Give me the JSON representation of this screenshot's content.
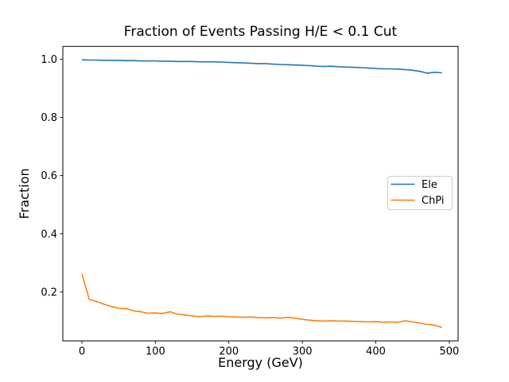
{
  "figure": {
    "background": "#ffffff",
    "spine_color": "#000000"
  },
  "chart_data": {
    "type": "line",
    "title": "Fraction of Events Passing H/E < 0.1 Cut",
    "xlabel": "Energy (GeV)",
    "ylabel": "Fraction",
    "grid": false,
    "legend": {
      "position": "center right",
      "entries": [
        "Ele",
        "ChPi"
      ]
    },
    "xlim": [
      -26,
      512
    ],
    "ylim": [
      0.032,
      1.044
    ],
    "xticks": {
      "values": [
        0,
        100,
        200,
        300,
        400,
        500
      ],
      "labels": [
        "0",
        "100",
        "200",
        "300",
        "400",
        "500"
      ]
    },
    "yticks": {
      "values": [
        0.2,
        0.4,
        0.6,
        0.8,
        1.0
      ],
      "labels": [
        "0.2",
        "0.4",
        "0.6",
        "0.8",
        "1.0"
      ]
    },
    "x": [
      0,
      10,
      20,
      30,
      40,
      50,
      60,
      70,
      80,
      90,
      100,
      110,
      120,
      130,
      140,
      150,
      160,
      170,
      180,
      190,
      200,
      210,
      220,
      230,
      240,
      250,
      260,
      270,
      280,
      290,
      300,
      310,
      320,
      330,
      340,
      350,
      360,
      370,
      380,
      390,
      400,
      410,
      420,
      430,
      440,
      450,
      460,
      470,
      480,
      490
    ],
    "series": [
      {
        "name": "Ele",
        "color": "#1f77b4",
        "values": [
          0.998,
          0.997,
          0.997,
          0.996,
          0.996,
          0.996,
          0.995,
          0.995,
          0.994,
          0.994,
          0.994,
          0.993,
          0.993,
          0.992,
          0.992,
          0.992,
          0.991,
          0.991,
          0.991,
          0.99,
          0.989,
          0.988,
          0.987,
          0.986,
          0.985,
          0.985,
          0.983,
          0.982,
          0.981,
          0.98,
          0.979,
          0.978,
          0.976,
          0.975,
          0.976,
          0.974,
          0.973,
          0.972,
          0.971,
          0.97,
          0.968,
          0.967,
          0.967,
          0.966,
          0.964,
          0.962,
          0.958,
          0.952,
          0.955,
          0.953
        ]
      },
      {
        "name": "ChPi",
        "color": "#ff7f0e",
        "values": [
          0.262,
          0.174,
          0.167,
          0.158,
          0.15,
          0.144,
          0.143,
          0.135,
          0.132,
          0.127,
          0.128,
          0.126,
          0.132,
          0.124,
          0.121,
          0.118,
          0.115,
          0.118,
          0.116,
          0.117,
          0.115,
          0.114,
          0.113,
          0.114,
          0.112,
          0.111,
          0.112,
          0.11,
          0.113,
          0.11,
          0.106,
          0.103,
          0.101,
          0.1,
          0.101,
          0.1,
          0.1,
          0.099,
          0.098,
          0.097,
          0.098,
          0.096,
          0.097,
          0.096,
          0.101,
          0.097,
          0.093,
          0.089,
          0.086,
          0.078
        ]
      }
    ]
  }
}
